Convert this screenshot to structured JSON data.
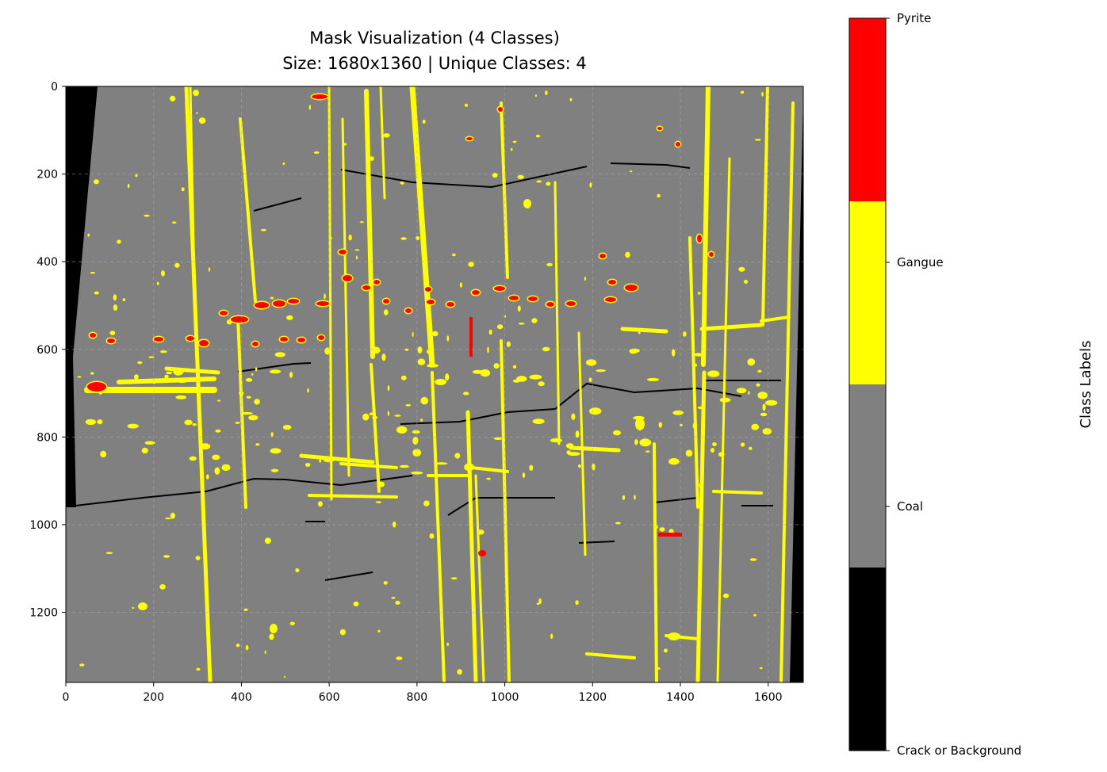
{
  "chart_data": {
    "type": "heatmap",
    "title_line1": "Mask Visualization (4 Classes)",
    "title_line2": "Size: 1680x1360 | Unique Classes: 4",
    "xlim": [
      0,
      1680
    ],
    "ylim": [
      1360,
      0
    ],
    "xticks": [
      0,
      200,
      400,
      600,
      800,
      1000,
      1200,
      1400,
      1600
    ],
    "yticks": [
      0,
      200,
      400,
      600,
      800,
      1000,
      1200
    ],
    "grid": true,
    "colorbar": {
      "label": "Class Labels",
      "classes": [
        {
          "name": "Crack or Background",
          "color": "#000000",
          "value": 0
        },
        {
          "name": "Coal",
          "color": "#808080",
          "value": 1
        },
        {
          "name": "Gangue",
          "color": "#ffff00",
          "value": 2
        },
        {
          "name": "Pyrite",
          "color": "#ff0000",
          "value": 3
        }
      ]
    }
  }
}
